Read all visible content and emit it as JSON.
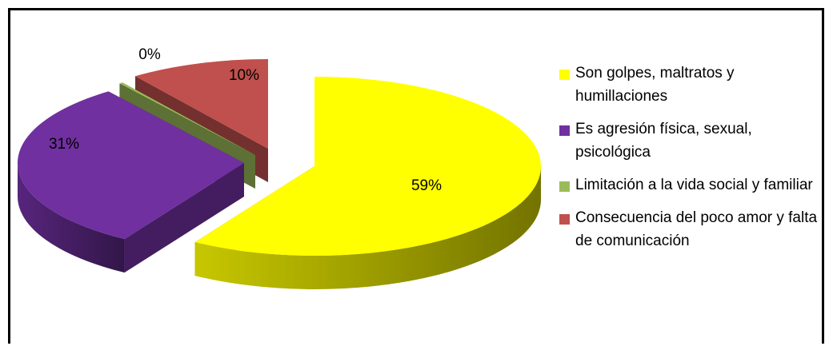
{
  "chart_data": {
    "type": "pie",
    "style": "3d-exploded",
    "legend_position": "right",
    "slices": [
      {
        "label": "Son golpes, maltratos y humillaciones",
        "value": 59,
        "value_label": "59%",
        "color": "#FFFF00"
      },
      {
        "label": "Es agresión física, sexual, psicológica",
        "value": 31,
        "value_label": "31%",
        "color": "#7030A0"
      },
      {
        "label": "Limitación a la vida social y familiar",
        "value": 0,
        "value_label": "0%",
        "color": "#9BBB59"
      },
      {
        "label": "Consecuencia del poco amor y falta de comunicación",
        "value": 10,
        "value_label": "10%",
        "color": "#C0504D"
      }
    ]
  }
}
